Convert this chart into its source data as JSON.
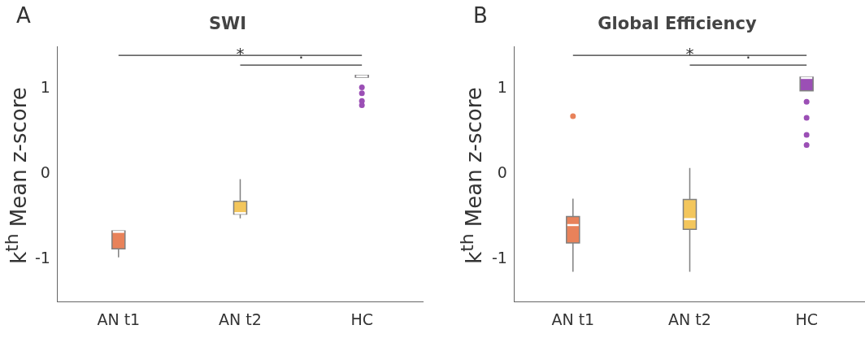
{
  "chart_data": [
    {
      "type": "box",
      "title": "SWI",
      "ylabel": "k$^{th}$ Mean z-score",
      "categories": [
        "AN t1",
        "AN t2",
        "HC"
      ],
      "colors": [
        "#e8825a",
        "#f3c65c",
        "#9b4fb5"
      ],
      "boxes": [
        {
          "low": -0.98,
          "q1": -0.88,
          "median": -0.68,
          "q3": -0.67,
          "high": -0.67
        },
        {
          "low": -0.52,
          "q1": -0.47,
          "median": -0.46,
          "q3": -0.32,
          "high": -0.06
        },
        {
          "low": 1.13,
          "q1": 1.14,
          "median": 1.15,
          "q3": 1.16,
          "high": 1.17,
          "outliers": [
            1.02,
            0.95,
            0.86,
            0.81
          ]
        }
      ],
      "ylim": [
        -1.5,
        1.5
      ],
      "yticks": [
        -1,
        0,
        1
      ],
      "grid": false,
      "annotations": [
        "A",
        "*",
        "·"
      ]
    },
    {
      "type": "box",
      "title": "Global Efficiency",
      "ylabel": "k$^{th}$ Mean z-score",
      "categories": [
        "AN t1",
        "AN t2",
        "HC"
      ],
      "colors": [
        "#e8825a",
        "#f3c65c",
        "#9b4fb5"
      ],
      "boxes": [
        {
          "low": -1.15,
          "q1": -0.81,
          "median": -0.6,
          "q3": -0.5,
          "high": -0.29,
          "outliers": [
            0.68
          ]
        },
        {
          "low": -1.15,
          "q1": -0.65,
          "median": -0.53,
          "q3": -0.3,
          "high": 0.07
        },
        {
          "low": 0.98,
          "q1": 0.98,
          "median": 1.13,
          "q3": 1.14,
          "high": 1.15,
          "outliers": [
            0.85,
            0.66,
            0.46,
            0.34
          ]
        }
      ],
      "ylim": [
        -1.5,
        1.5
      ],
      "yticks": [
        -1,
        0,
        1
      ],
      "grid": false,
      "annotations": [
        "B",
        "*",
        "·"
      ]
    }
  ]
}
